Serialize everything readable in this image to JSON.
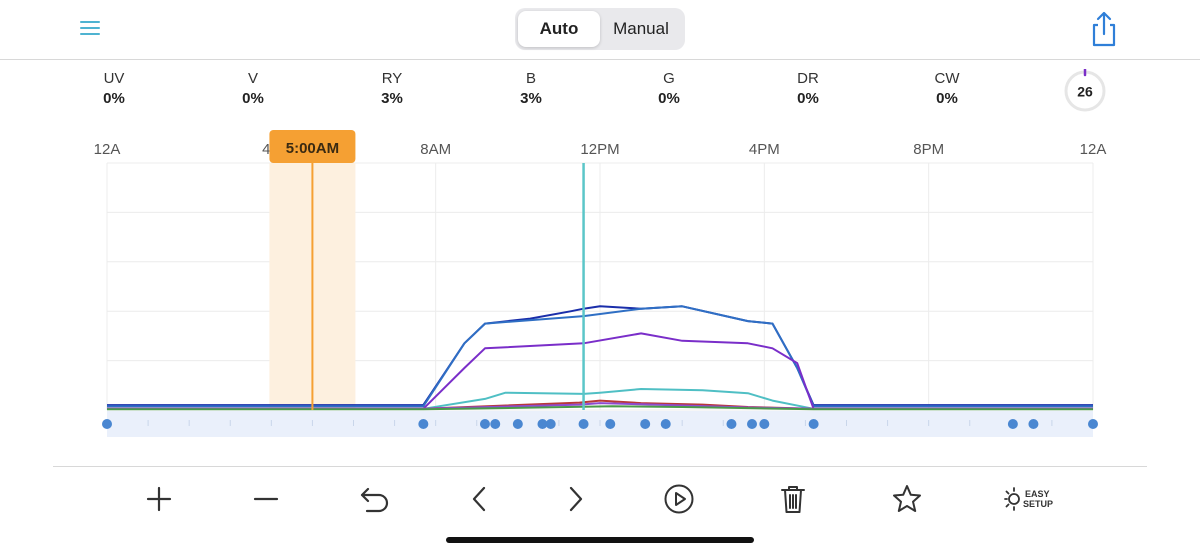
{
  "header": {
    "segments": [
      {
        "label": "Auto",
        "active": true
      },
      {
        "label": "Manual",
        "active": false
      }
    ]
  },
  "channels": [
    {
      "name": "UV",
      "value": "0%"
    },
    {
      "name": "V",
      "value": "0%"
    },
    {
      "name": "RY",
      "value": "3%"
    },
    {
      "name": "B",
      "value": "3%"
    },
    {
      "name": "G",
      "value": "0%"
    },
    {
      "name": "DR",
      "value": "0%"
    },
    {
      "name": "CW",
      "value": "0%"
    }
  ],
  "temperature": {
    "value": "26",
    "accent": "#7b2fc7"
  },
  "chart_data": {
    "type": "line",
    "x_unit": "hour of day",
    "xlim": [
      0,
      24
    ],
    "ylim": [
      0,
      100
    ],
    "x_tick_labels": [
      "12A",
      "4A",
      "8AM",
      "12PM",
      "4PM",
      "8PM",
      "12A"
    ],
    "x_ticks": [
      0,
      4,
      8,
      12,
      16,
      20,
      24
    ],
    "grid": true,
    "selected_time_label": "5:00AM",
    "selected_time": 5,
    "current_time": 11.6,
    "colors": {
      "selection": "#f5a033",
      "selection_band": "#fdf0df",
      "now_line": "#5bc6c8",
      "point": "#4a87d1",
      "point_strip": "#eaf0fb"
    },
    "series": [
      {
        "color": "#1a2eaa",
        "x": [
          0,
          7.7,
          8.7,
          9.2,
          10.3,
          11.3,
          11.6,
          12,
          13,
          14,
          15.6,
          16.2,
          16.8,
          17.2,
          20,
          24
        ],
        "y": [
          2,
          2,
          27,
          35,
          37,
          40,
          41,
          42,
          41,
          42,
          36,
          35,
          17,
          2,
          2,
          2
        ]
      },
      {
        "color": "#2f6fc4",
        "x": [
          0,
          7.7,
          8.7,
          9.2,
          11.6,
          13,
          14,
          15.6,
          16.2,
          16.8,
          17.2,
          24
        ],
        "y": [
          1.5,
          1.5,
          27,
          35,
          38,
          41,
          42,
          36,
          35,
          17,
          1.5,
          1.5
        ]
      },
      {
        "color": "#7a2ec9",
        "x": [
          0,
          7.7,
          8.7,
          9.2,
          11.6,
          13,
          14,
          15.6,
          16.2,
          16.8,
          17.2,
          24
        ],
        "y": [
          0.5,
          0.5,
          17,
          25,
          27,
          31,
          28,
          27,
          25,
          19,
          0.5,
          0.5
        ]
      },
      {
        "color": "#4fbfc4",
        "x": [
          0,
          7.7,
          9.2,
          9.7,
          11.6,
          12,
          13,
          14.5,
          15.6,
          16.2,
          17.2,
          24
        ],
        "y": [
          0.5,
          0.5,
          4.5,
          7,
          6.5,
          7,
          8.5,
          8,
          6.8,
          3.8,
          0.5,
          0.5
        ]
      },
      {
        "color": "#b83838",
        "x": [
          0,
          7.7,
          11.5,
          12,
          13,
          14.5,
          15.6,
          17.2,
          24
        ],
        "y": [
          0.5,
          0.5,
          3,
          3.8,
          2.8,
          2.2,
          1.2,
          0.5,
          0.5
        ]
      },
      {
        "color": "#8e4bd0",
        "x": [
          0,
          7.7,
          11.5,
          12,
          13,
          15.6,
          17.2,
          24
        ],
        "y": [
          0.5,
          0.5,
          2.2,
          2.8,
          2.3,
          1,
          0.5,
          0.5
        ]
      },
      {
        "color": "#4a9a4a",
        "x": [
          0,
          7.7,
          12.3,
          14,
          17.2,
          24
        ],
        "y": [
          0.3,
          0.3,
          1.5,
          1.2,
          0.3,
          0.3
        ]
      }
    ],
    "control_points": [
      0,
      7.7,
      9.2,
      9.45,
      10.0,
      10.6,
      10.8,
      11.6,
      12.25,
      13.1,
      13.6,
      15.2,
      15.7,
      16.0,
      17.2,
      22.05,
      22.55,
      24
    ]
  },
  "toolbar": {
    "items": [
      {
        "name": "add",
        "icon": "plus-icon"
      },
      {
        "name": "remove",
        "icon": "minus-icon"
      },
      {
        "name": "undo",
        "icon": "undo-icon"
      },
      {
        "name": "previous",
        "icon": "chevron-left-icon"
      },
      {
        "name": "next",
        "icon": "chevron-right-icon"
      },
      {
        "name": "play",
        "icon": "play-circle-icon"
      },
      {
        "name": "delete",
        "icon": "trash-icon"
      },
      {
        "name": "favorite",
        "icon": "star-icon"
      },
      {
        "name": "easy-setup",
        "icon": "easy-setup-icon"
      }
    ],
    "easy_setup_line1": "EASY",
    "easy_setup_line2": "SETUP"
  }
}
